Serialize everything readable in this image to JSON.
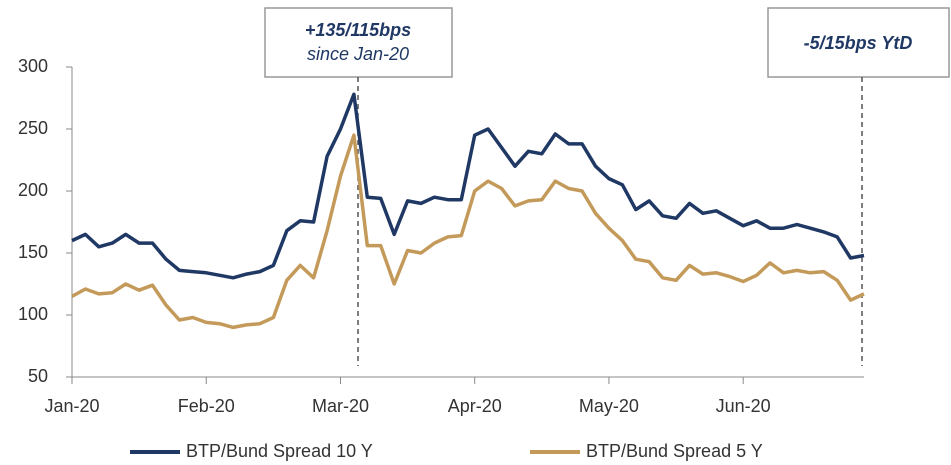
{
  "chart_data": {
    "type": "line",
    "annotations": [
      {
        "text": "+135/115bps",
        "subtext": "since Jan-20"
      },
      {
        "text": "-5/15bps YtD"
      }
    ],
    "categories": [
      "Jan-20",
      null,
      null,
      null,
      null,
      null,
      null,
      null,
      null,
      null,
      "Feb-20",
      null,
      null,
      null,
      null,
      null,
      null,
      null,
      null,
      null,
      "Mar-20",
      null,
      null,
      null,
      null,
      null,
      null,
      null,
      null,
      null,
      "Apr-20",
      null,
      null,
      null,
      null,
      null,
      null,
      null,
      null,
      null,
      "May-20",
      null,
      null,
      null,
      null,
      null,
      null,
      null,
      null,
      null,
      "Jun-20",
      null,
      null,
      null,
      null,
      null,
      null,
      null,
      null,
      null
    ],
    "series": [
      {
        "name": "BTP/Bund Spread 10 Y",
        "color": "#1f3864",
        "values": [
          160,
          165,
          155,
          158,
          165,
          158,
          158,
          145,
          136,
          135,
          134,
          132,
          130,
          133,
          135,
          140,
          168,
          176,
          175,
          228,
          250,
          278,
          195,
          194,
          165,
          192,
          190,
          195,
          193,
          193,
          245,
          250,
          235,
          220,
          232,
          230,
          246,
          238,
          238,
          220,
          210,
          205,
          185,
          192,
          180,
          178,
          190,
          182,
          184,
          178,
          172,
          176,
          170,
          170,
          173,
          170,
          167,
          163,
          146,
          148
        ]
      },
      {
        "name": "BTP/Bund Spread 5 Y",
        "color": "#c49a5a",
        "values": [
          115,
          121,
          117,
          118,
          125,
          120,
          124,
          108,
          96,
          98,
          94,
          93,
          90,
          92,
          93,
          98,
          128,
          140,
          130,
          168,
          212,
          245,
          156,
          156,
          125,
          152,
          150,
          158,
          163,
          164,
          200,
          208,
          202,
          188,
          192,
          193,
          208,
          202,
          200,
          182,
          170,
          160,
          145,
          143,
          130,
          128,
          140,
          133,
          134,
          131,
          127,
          132,
          142,
          134,
          136,
          134,
          135,
          128,
          112,
          117
        ]
      }
    ],
    "ylim": [
      50,
      300
    ],
    "yticks": [
      50,
      100,
      150,
      200,
      250,
      300
    ],
    "grid": false,
    "legend": "bottom"
  }
}
